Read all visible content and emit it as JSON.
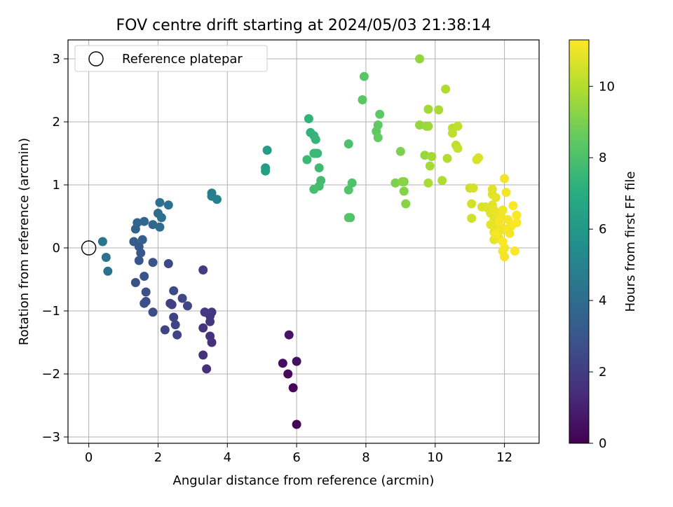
{
  "chart_data": {
    "type": "scatter",
    "title": "FOV centre drift starting at 2024/05/03 21:38:14",
    "xlabel": "Angular distance from reference (arcmin)",
    "ylabel": "Rotation from reference (arcmin)",
    "xlim": [
      -0.6,
      13.0
    ],
    "ylim": [
      -3.1,
      3.3
    ],
    "xticks": [
      "0",
      "2",
      "4",
      "6",
      "8",
      "10",
      "12"
    ],
    "xtick_values": [
      0,
      2,
      4,
      6,
      8,
      10,
      12
    ],
    "yticks": [
      "−3",
      "−2",
      "−1",
      "0",
      "1",
      "2",
      "3"
    ],
    "ytick_values": [
      -3,
      -2,
      -1,
      0,
      1,
      2,
      3
    ],
    "grid": true,
    "legend": {
      "placement": "top-left",
      "entries": [
        {
          "label": "Reference platepar",
          "marker": "open-circle",
          "x": 0,
          "y": 0
        }
      ]
    },
    "colorbar": {
      "label": "Hours from first FF file",
      "colormap": "viridis",
      "range": [
        0,
        11.3
      ],
      "ticks": [
        "0",
        "2",
        "4",
        "6",
        "8",
        "10"
      ],
      "tick_values": [
        0,
        2,
        4,
        6,
        8,
        10
      ]
    },
    "series": [
      {
        "x": [
          6.0,
          5.9,
          5.75,
          5.6,
          6.0,
          5.78,
          3.4,
          3.3,
          3.55,
          3.5,
          3.3,
          3.5,
          3.55,
          3.5,
          3.35,
          3.35,
          3.3,
          2.35,
          2.4,
          2.45,
          2.2,
          2.55,
          2.5,
          2.7,
          2.85,
          2.3,
          2.45,
          1.85,
          1.65,
          1.6,
          1.65,
          1.35,
          1.6,
          1.85,
          1.45,
          1.5,
          1.45,
          1.3,
          1.55,
          1.35,
          1.4,
          1.6,
          1.85,
          2.05,
          2.0,
          2.1,
          2.05,
          2.3,
          0.55,
          0.5,
          0.4,
          3.55,
          3.55,
          3.7,
          5.15,
          5.1,
          5.1,
          6.35,
          6.4,
          6.5,
          6.55,
          6.6,
          6.5,
          6.55,
          6.3,
          6.65,
          6.7,
          6.65,
          6.5,
          7.5,
          7.55,
          7.6,
          7.5,
          7.5,
          7.95,
          7.9,
          8.4,
          8.35,
          8.3,
          8.35,
          8.85,
          9.0,
          9.1,
          9.1,
          9.15,
          9.05,
          9.55,
          9.55,
          9.7,
          9.8,
          9.75,
          9.8,
          9.9,
          9.85,
          9.8,
          10.1,
          10.2,
          10.3,
          10.35,
          10.5,
          10.5,
          10.65,
          10.6,
          10.65,
          11.0,
          11.05,
          11.05,
          11.1,
          11.2,
          11.25,
          11.35,
          11.45,
          11.55,
          11.6,
          11.65,
          11.65,
          11.65,
          11.7,
          11.7,
          11.7,
          11.75,
          11.75,
          11.8,
          11.8,
          11.85,
          11.85,
          11.9,
          11.9,
          11.95,
          11.95,
          12.0,
          12.0,
          12.05,
          12.05,
          12.1,
          12.15,
          12.2,
          12.25,
          12.3,
          12.35,
          12.35,
          11.6,
          11.7,
          11.8,
          11.9,
          12.0,
          11.75,
          11.85,
          11.95
        ],
        "y": [
          -2.8,
          -2.22,
          -2.0,
          -1.83,
          -1.8,
          -1.38,
          -1.92,
          -1.7,
          -1.5,
          -1.4,
          -1.27,
          -1.08,
          -1.02,
          -1.17,
          -1.02,
          -1.02,
          -0.35,
          -0.88,
          -0.9,
          -1.1,
          -1.3,
          -1.38,
          -1.22,
          -0.8,
          -0.92,
          -0.25,
          -0.68,
          -1.02,
          -0.85,
          -0.88,
          -0.7,
          -0.55,
          -0.45,
          -0.23,
          -0.2,
          -0.08,
          0.02,
          0.1,
          0.13,
          0.3,
          0.4,
          0.42,
          0.37,
          0.33,
          0.55,
          0.48,
          0.72,
          0.68,
          -0.37,
          -0.15,
          0.1,
          0.87,
          0.82,
          0.77,
          1.55,
          1.27,
          1.22,
          2.05,
          1.83,
          1.78,
          1.72,
          1.5,
          1.5,
          1.5,
          1.4,
          1.27,
          1.07,
          0.98,
          0.93,
          1.65,
          0.48,
          1.03,
          0.92,
          0.48,
          2.72,
          2.35,
          2.12,
          1.95,
          1.85,
          1.75,
          1.03,
          1.53,
          1.05,
          0.9,
          0.7,
          1.05,
          3.0,
          1.95,
          1.47,
          1.93,
          1.93,
          2.2,
          1.45,
          1.3,
          1.03,
          2.19,
          1.07,
          2.52,
          1.42,
          1.9,
          1.82,
          1.93,
          1.63,
          1.58,
          0.95,
          0.47,
          0.7,
          0.95,
          1.4,
          1.43,
          0.65,
          0.65,
          0.62,
          0.55,
          0.93,
          0.85,
          0.68,
          0.45,
          0.25,
          0.13,
          0.8,
          0.2,
          0.5,
          0.35,
          0.4,
          0.15,
          0.28,
          0.32,
          0.6,
          -0.05,
          1.1,
          0.0,
          0.88,
          0.3,
          0.45,
          0.23,
          0.35,
          0.67,
          -0.05,
          0.52,
          0.4,
          0.37,
          0.6,
          0.18,
          0.5,
          -0.14,
          0.22,
          0.42,
          0.1
        ],
        "color_value": [
          0.1,
          0.2,
          0.3,
          0.4,
          0.5,
          0.6,
          1.5,
          1.55,
          1.6,
          1.65,
          1.7,
          1.75,
          1.8,
          1.85,
          1.9,
          1.95,
          2.0,
          2.1,
          2.15,
          2.2,
          2.25,
          2.3,
          2.35,
          2.4,
          2.45,
          2.5,
          2.55,
          2.6,
          2.65,
          2.7,
          2.75,
          2.8,
          2.85,
          2.9,
          3.0,
          3.1,
          3.2,
          3.3,
          3.4,
          3.5,
          3.6,
          3.7,
          3.8,
          3.9,
          4.0,
          4.05,
          4.1,
          4.15,
          4.2,
          4.25,
          4.3,
          4.8,
          4.85,
          4.9,
          6.2,
          6.25,
          6.3,
          7.3,
          7.35,
          7.4,
          7.45,
          7.5,
          7.55,
          7.6,
          7.65,
          7.7,
          7.75,
          7.8,
          7.85,
          8.0,
          8.05,
          8.1,
          8.15,
          8.2,
          8.3,
          8.35,
          8.4,
          8.45,
          8.5,
          8.55,
          9.0,
          9.05,
          9.1,
          9.15,
          9.2,
          9.25,
          9.4,
          9.45,
          9.5,
          9.55,
          9.6,
          9.65,
          9.7,
          9.75,
          9.8,
          9.85,
          9.9,
          9.95,
          10.0,
          10.1,
          10.15,
          10.2,
          10.25,
          10.3,
          10.4,
          10.45,
          10.5,
          10.55,
          10.6,
          10.65,
          10.7,
          10.72,
          10.74,
          10.76,
          10.78,
          10.8,
          10.82,
          10.84,
          10.86,
          10.88,
          10.9,
          10.92,
          10.94,
          10.96,
          10.98,
          11.0,
          11.02,
          11.04,
          11.06,
          11.08,
          11.1,
          11.12,
          11.14,
          11.16,
          11.18,
          11.2,
          11.22,
          11.24,
          11.26,
          11.28,
          11.3,
          10.9,
          10.95,
          11.0,
          11.05,
          11.1,
          11.15,
          11.2,
          11.25
        ]
      }
    ]
  }
}
